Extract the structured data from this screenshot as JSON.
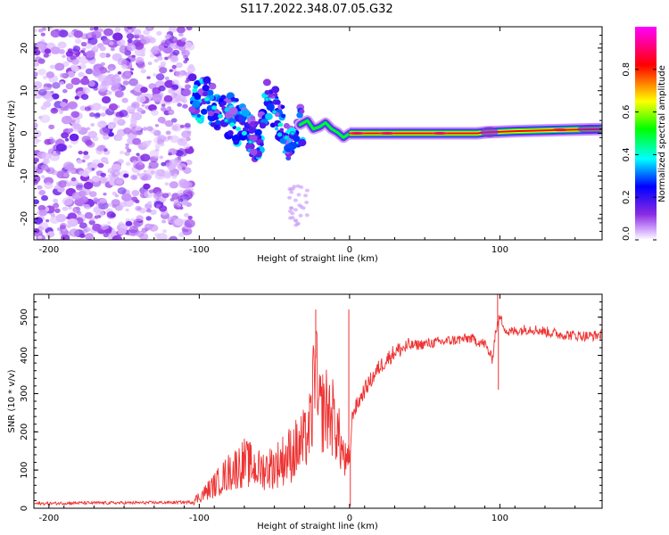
{
  "figure_title": "S117.2022.348.07.05.G32",
  "chart_data": [
    {
      "type": "heatmap",
      "title": "S117.2022.348.07.05.G32",
      "xlabel": "Height of straight line (km)",
      "ylabel": "Frequency (Hz)",
      "xlim": [
        -210,
        168
      ],
      "ylim": [
        -25,
        25
      ],
      "xticks": [
        -200,
        -100,
        0,
        100
      ],
      "yticks": [
        -20,
        -10,
        0,
        10,
        20
      ],
      "noise_region_x": [
        -210,
        -105
      ],
      "signal_track": [
        {
          "x": -105,
          "y": 10
        },
        {
          "x": -100,
          "y": 8
        },
        {
          "x": -95,
          "y": 8
        },
        {
          "x": -88,
          "y": 6
        },
        {
          "x": -80,
          "y": 4
        },
        {
          "x": -72,
          "y": 2
        },
        {
          "x": -65,
          "y": -1
        },
        {
          "x": -60,
          "y": -3
        },
        {
          "x": -55,
          "y": 8
        },
        {
          "x": -48,
          "y": 5
        },
        {
          "x": -43,
          "y": 0
        },
        {
          "x": -38,
          "y": -3
        },
        {
          "x": -33,
          "y": 2
        },
        {
          "x": -28,
          "y": 3
        },
        {
          "x": -20,
          "y": 1
        },
        {
          "x": -15,
          "y": 2
        },
        {
          "x": -10,
          "y": 0
        },
        {
          "x": -5,
          "y": -1
        },
        {
          "x": 0,
          "y": 0
        },
        {
          "x": 20,
          "y": 0
        },
        {
          "x": 60,
          "y": 0
        },
        {
          "x": 90,
          "y": 0
        },
        {
          "x": 100,
          "y": 0.3
        },
        {
          "x": 130,
          "y": 0.6
        },
        {
          "x": 168,
          "y": 1
        }
      ],
      "colorbar": {
        "label": "Normalized spectral amplitude",
        "range": [
          0,
          1
        ],
        "ticks": [
          "0.0",
          "0.2",
          "0.4",
          "0.6",
          "0.8"
        ],
        "tick_values": [
          0.0,
          0.2,
          0.4,
          0.6,
          0.8
        ],
        "colors": [
          "#d9b3ff",
          "#8a2be2",
          "#0000ff",
          "#00ffff",
          "#00ff00",
          "#ffff00",
          "#ff0000",
          "#ff00ff"
        ]
      }
    },
    {
      "type": "line",
      "xlabel": "Height of straight line (km)",
      "ylabel": "SNR (10 * v/v)",
      "xlim": [
        -210,
        168
      ],
      "ylim": [
        0,
        560
      ],
      "xticks": [
        -200,
        -100,
        0,
        100
      ],
      "yticks": [
        0,
        100,
        200,
        300,
        400,
        500
      ],
      "color": "#ee3333",
      "series": [
        {
          "name": "SNR",
          "x": [
            -210,
            -180,
            -150,
            -120,
            -105,
            -98,
            -90,
            -80,
            -70,
            -60,
            -50,
            -40,
            -30,
            -25,
            -23,
            -21,
            -15,
            -10,
            -5,
            -2,
            0,
            2,
            5,
            10,
            20,
            30,
            40,
            60,
            80,
            90,
            95,
            97,
            100,
            105,
            120,
            140,
            160,
            168
          ],
          "y": [
            12,
            14,
            14,
            15,
            16,
            35,
            60,
            95,
            120,
            100,
            110,
            140,
            170,
            230,
            440,
            250,
            260,
            230,
            150,
            110,
            120,
            250,
            270,
            310,
            370,
            410,
            425,
            435,
            445,
            430,
            390,
            460,
            500,
            460,
            470,
            455,
            450,
            455
          ]
        }
      ],
      "spikes": [
        {
          "x": -22.5,
          "y": 520
        },
        {
          "x": -0.5,
          "y": 520
        },
        {
          "x": 0.5,
          "y": 5
        },
        {
          "x": 98.5,
          "y": 560
        },
        {
          "x": 99,
          "y": 310
        }
      ]
    }
  ]
}
